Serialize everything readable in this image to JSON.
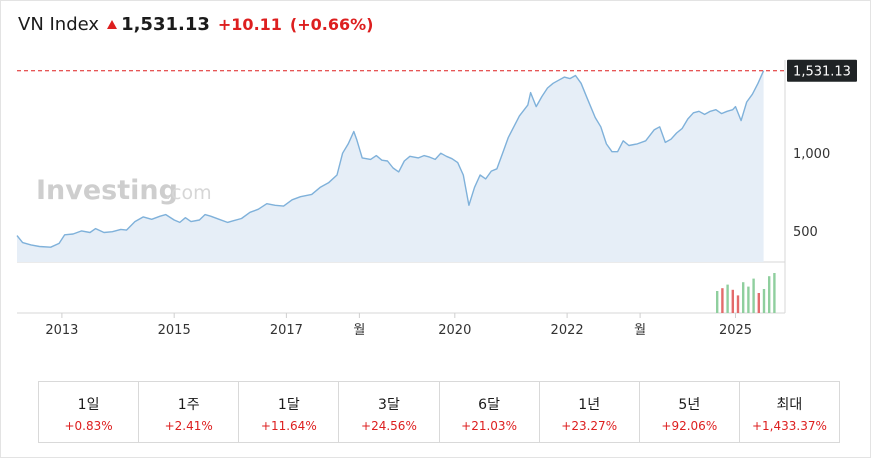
{
  "header": {
    "name": "VN Index",
    "price": "1,531.13",
    "change": "+10.11",
    "change_pct": "(+0.66%)"
  },
  "watermark": {
    "brand": "Investing",
    "suffix": ".com"
  },
  "colors": {
    "up": "#dd1f1f",
    "line": "#7fb1da",
    "area": "#e6eef7",
    "volume_up": "#8fcf9e",
    "volume_down": "#e36b6b",
    "price_tag_bg": "#1f2325"
  },
  "chart_data": {
    "type": "area",
    "current_value": 1531.13,
    "current_value_label": "1,531.13",
    "x_range": [
      2012.2,
      2025.65
    ],
    "ylim": [
      300,
      1600
    ],
    "y_ticks": [
      {
        "value": 500,
        "label": "500"
      },
      {
        "value": 1000,
        "label": "1,000"
      }
    ],
    "x_ticks": [
      {
        "x": 2013.0,
        "label": "2013"
      },
      {
        "x": 2015.0,
        "label": "2015"
      },
      {
        "x": 2017.0,
        "label": "2017"
      },
      {
        "x": 2018.3,
        "label": "월"
      },
      {
        "x": 2020.0,
        "label": "2020"
      },
      {
        "x": 2022.0,
        "label": "2022"
      },
      {
        "x": 2023.3,
        "label": "월"
      },
      {
        "x": 2025.0,
        "label": "2025"
      }
    ],
    "series": [
      {
        "points": [
          [
            2012.2,
            470
          ],
          [
            2012.3,
            425
          ],
          [
            2012.45,
            410
          ],
          [
            2012.6,
            400
          ],
          [
            2012.8,
            395
          ],
          [
            2012.95,
            420
          ],
          [
            2013.05,
            475
          ],
          [
            2013.2,
            480
          ],
          [
            2013.35,
            500
          ],
          [
            2013.5,
            490
          ],
          [
            2013.6,
            515
          ],
          [
            2013.75,
            490
          ],
          [
            2013.9,
            495
          ],
          [
            2014.05,
            510
          ],
          [
            2014.15,
            505
          ],
          [
            2014.3,
            560
          ],
          [
            2014.45,
            590
          ],
          [
            2014.6,
            575
          ],
          [
            2014.75,
            595
          ],
          [
            2014.85,
            605
          ],
          [
            2015.0,
            570
          ],
          [
            2015.1,
            555
          ],
          [
            2015.2,
            585
          ],
          [
            2015.3,
            560
          ],
          [
            2015.45,
            570
          ],
          [
            2015.55,
            605
          ],
          [
            2015.65,
            595
          ],
          [
            2015.8,
            575
          ],
          [
            2015.95,
            555
          ],
          [
            2016.05,
            565
          ],
          [
            2016.2,
            580
          ],
          [
            2016.35,
            620
          ],
          [
            2016.5,
            640
          ],
          [
            2016.65,
            675
          ],
          [
            2016.8,
            665
          ],
          [
            2016.95,
            660
          ],
          [
            2017.1,
            700
          ],
          [
            2017.25,
            720
          ],
          [
            2017.45,
            735
          ],
          [
            2017.6,
            780
          ],
          [
            2017.75,
            810
          ],
          [
            2017.9,
            860
          ],
          [
            2018.0,
            1000
          ],
          [
            2018.1,
            1060
          ],
          [
            2018.2,
            1140
          ],
          [
            2018.25,
            1090
          ],
          [
            2018.35,
            970
          ],
          [
            2018.5,
            960
          ],
          [
            2018.6,
            985
          ],
          [
            2018.7,
            955
          ],
          [
            2018.8,
            950
          ],
          [
            2018.9,
            905
          ],
          [
            2019.0,
            880
          ],
          [
            2019.1,
            950
          ],
          [
            2019.2,
            980
          ],
          [
            2019.35,
            970
          ],
          [
            2019.45,
            985
          ],
          [
            2019.55,
            975
          ],
          [
            2019.65,
            960
          ],
          [
            2019.75,
            1000
          ],
          [
            2019.85,
            980
          ],
          [
            2019.95,
            965
          ],
          [
            2020.05,
            940
          ],
          [
            2020.15,
            860
          ],
          [
            2020.25,
            665
          ],
          [
            2020.35,
            780
          ],
          [
            2020.45,
            860
          ],
          [
            2020.55,
            835
          ],
          [
            2020.65,
            885
          ],
          [
            2020.75,
            900
          ],
          [
            2020.85,
            1000
          ],
          [
            2020.95,
            1100
          ],
          [
            2021.05,
            1170
          ],
          [
            2021.15,
            1240
          ],
          [
            2021.3,
            1310
          ],
          [
            2021.35,
            1390
          ],
          [
            2021.45,
            1300
          ],
          [
            2021.55,
            1365
          ],
          [
            2021.65,
            1420
          ],
          [
            2021.75,
            1450
          ],
          [
            2021.85,
            1470
          ],
          [
            2021.95,
            1490
          ],
          [
            2022.05,
            1480
          ],
          [
            2022.15,
            1500
          ],
          [
            2022.25,
            1450
          ],
          [
            2022.35,
            1360
          ],
          [
            2022.5,
            1230
          ],
          [
            2022.6,
            1170
          ],
          [
            2022.7,
            1060
          ],
          [
            2022.8,
            1010
          ],
          [
            2022.9,
            1010
          ],
          [
            2023.0,
            1080
          ],
          [
            2023.1,
            1050
          ],
          [
            2023.25,
            1060
          ],
          [
            2023.4,
            1080
          ],
          [
            2023.55,
            1150
          ],
          [
            2023.65,
            1170
          ],
          [
            2023.75,
            1070
          ],
          [
            2023.85,
            1090
          ],
          [
            2023.95,
            1130
          ],
          [
            2024.05,
            1160
          ],
          [
            2024.15,
            1220
          ],
          [
            2024.25,
            1260
          ],
          [
            2024.35,
            1270
          ],
          [
            2024.45,
            1250
          ],
          [
            2024.55,
            1270
          ],
          [
            2024.65,
            1280
          ],
          [
            2024.75,
            1255
          ],
          [
            2024.85,
            1270
          ],
          [
            2024.95,
            1280
          ],
          [
            2025.0,
            1300
          ],
          [
            2025.1,
            1210
          ],
          [
            2025.2,
            1330
          ],
          [
            2025.3,
            1380
          ],
          [
            2025.4,
            1450
          ],
          [
            2025.5,
            1531.13
          ]
        ]
      }
    ],
    "volume": [
      {
        "value": 0.55,
        "direction": "up"
      },
      {
        "value": 0.62,
        "direction": "down"
      },
      {
        "value": 0.71,
        "direction": "up"
      },
      {
        "value": 0.58,
        "direction": "down"
      },
      {
        "value": 0.44,
        "direction": "down"
      },
      {
        "value": 0.77,
        "direction": "up"
      },
      {
        "value": 0.66,
        "direction": "up"
      },
      {
        "value": 0.86,
        "direction": "up"
      },
      {
        "value": 0.5,
        "direction": "down"
      },
      {
        "value": 0.6,
        "direction": "up"
      },
      {
        "value": 0.92,
        "direction": "up"
      },
      {
        "value": 1.0,
        "direction": "up"
      }
    ],
    "grid": false
  },
  "performance": [
    {
      "label": "1일",
      "value": "+0.83%"
    },
    {
      "label": "1주",
      "value": "+2.41%"
    },
    {
      "label": "1달",
      "value": "+11.64%"
    },
    {
      "label": "3달",
      "value": "+24.56%"
    },
    {
      "label": "6달",
      "value": "+21.03%"
    },
    {
      "label": "1년",
      "value": "+23.27%"
    },
    {
      "label": "5년",
      "value": "+92.06%"
    },
    {
      "label": "최대",
      "value": "+1,433.37%"
    }
  ]
}
